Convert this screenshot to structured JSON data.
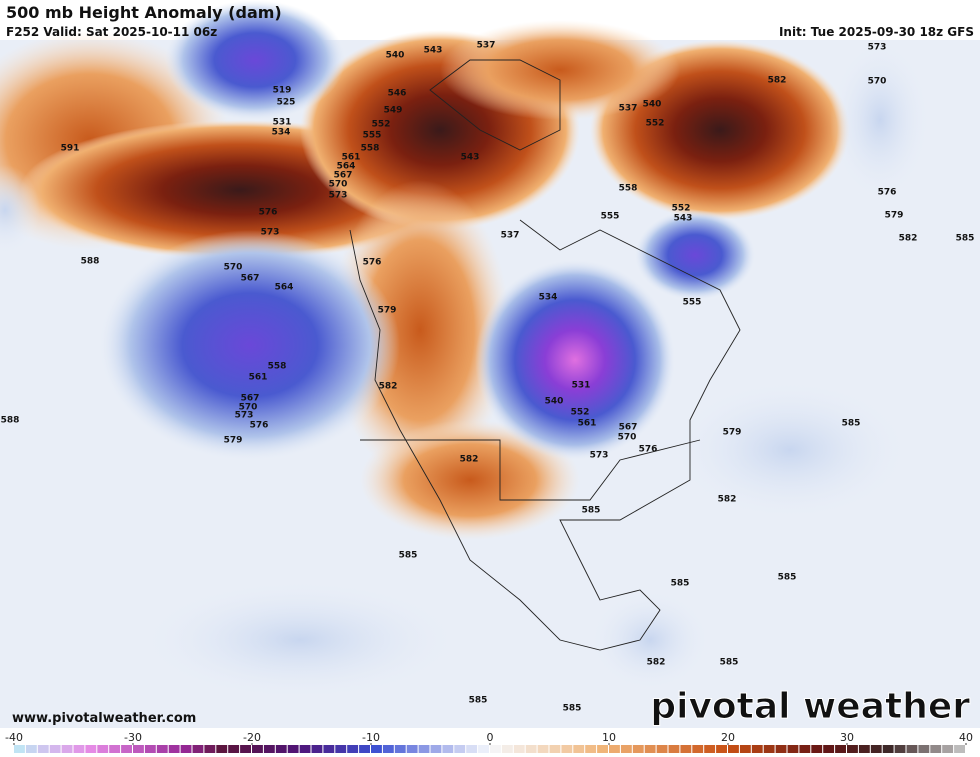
{
  "header": {
    "title": "500 mb Height Anomaly (dam)",
    "valid": "F252 Valid: Sat 2025-10-11 06z",
    "init": "Init: Tue 2025-09-30 18z GFS"
  },
  "contour_labels": [
    "519",
    "525",
    "531",
    "534",
    "540",
    "543",
    "537",
    "546",
    "549",
    "552",
    "555",
    "558",
    "561",
    "564",
    "567",
    "570",
    "573",
    "576",
    "573",
    "570",
    "567",
    "564",
    "558",
    "561",
    "567",
    "570",
    "573",
    "576",
    "579",
    "591",
    "588",
    "588",
    "576",
    "579",
    "582",
    "582",
    "537",
    "534",
    "531",
    "540",
    "552",
    "561",
    "567",
    "570",
    "573",
    "576",
    "579",
    "582",
    "585",
    "585",
    "585",
    "585",
    "582",
    "585",
    "585",
    "585",
    "543",
    "537",
    "540",
    "552",
    "558",
    "555",
    "552",
    "543",
    "555",
    "582",
    "573",
    "570",
    "576",
    "579",
    "582",
    "585",
    "585"
  ],
  "footer": {
    "url": "www.pivotalweather.com",
    "watermark": "pivotal weather"
  },
  "colorbar": {
    "range": [
      -40,
      40
    ],
    "ticks": [
      -40,
      -30,
      -20,
      -10,
      0,
      10,
      20,
      30,
      40
    ]
  }
}
